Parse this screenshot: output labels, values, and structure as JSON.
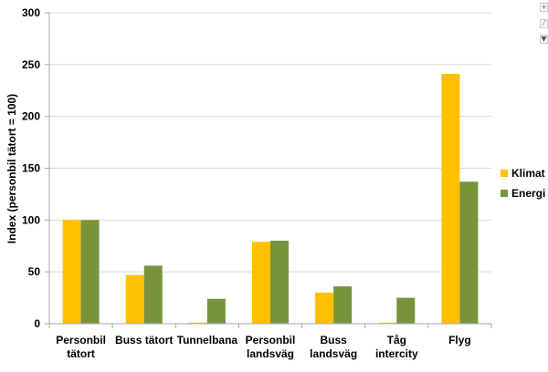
{
  "chart_data": {
    "type": "bar",
    "categories": [
      [
        "Personbil",
        "tätort"
      ],
      [
        "Buss tätort"
      ],
      [
        "Tunnelbana"
      ],
      [
        "Personbil",
        "landsväg"
      ],
      [
        "Buss",
        "landsväg"
      ],
      [
        "Tåg",
        "intercity"
      ],
      [
        "Flyg"
      ]
    ],
    "series": [
      {
        "name": "Klimat",
        "color": "#ffc000",
        "values": [
          100,
          47,
          1,
          79,
          30,
          1,
          241
        ]
      },
      {
        "name": "Energi",
        "color": "#77933c",
        "values": [
          100,
          56,
          24,
          80,
          36,
          25,
          137
        ]
      }
    ],
    "ylabel": "Index (personbil tätort = 100)",
    "xlabel": "",
    "ylim": [
      0,
      300
    ],
    "yticks": [
      "0",
      "50",
      "100",
      "150",
      "200",
      "250",
      "300"
    ],
    "grid": true,
    "legend": "right"
  },
  "toolbar": {
    "add_icon": "plus-icon",
    "style_icon": "brush-icon",
    "filter_icon": "filter-icon"
  }
}
